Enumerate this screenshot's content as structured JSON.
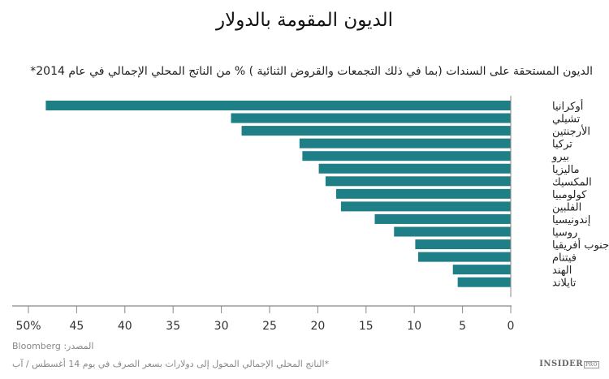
{
  "chart_data": {
    "type": "bar",
    "orientation": "horizontal",
    "title": "الديون المقومة بالدولار",
    "subtitle": "الديون المستحقة على السندات (بما في ذلك التجمعات والقروض الثنائية ) % من الناتج المحلي الإجمالي في عام 2014*",
    "categories": [
      "أوكرانيا",
      "تشيلي",
      "الأرجنتين",
      "تركيا",
      "بيرو",
      "ماليزيا",
      "المكسيك",
      "كولومبيا",
      "الفلبين",
      "إندونيسيا",
      "روسيا",
      "جنوب أفريقيا",
      "فيتنام",
      "الهند",
      "تايلاند"
    ],
    "values": [
      48.2,
      29.0,
      27.9,
      21.9,
      21.6,
      19.9,
      19.2,
      18.1,
      17.6,
      14.1,
      12.1,
      9.9,
      9.6,
      6.0,
      5.5
    ],
    "xlim": [
      0,
      50
    ],
    "x_ticks": [
      0,
      5,
      10,
      15,
      20,
      25,
      30,
      35,
      40,
      45,
      50
    ],
    "x_tick_labels": [
      "0",
      "5",
      "10",
      "15",
      "20",
      "25",
      "30",
      "35",
      "40",
      "45",
      "50%"
    ],
    "axis_direction": "reversed",
    "grid": false,
    "bar_color": "#1f7f86"
  },
  "footer": {
    "source": "المصدر: Bloomberg",
    "note": "*الناتج المحلي الإجمالي المحول إلى دولارات بسعر الصرف في يوم 14 أغسطس / آب",
    "logo": "INSIDER",
    "logo_badge": "PRO"
  }
}
